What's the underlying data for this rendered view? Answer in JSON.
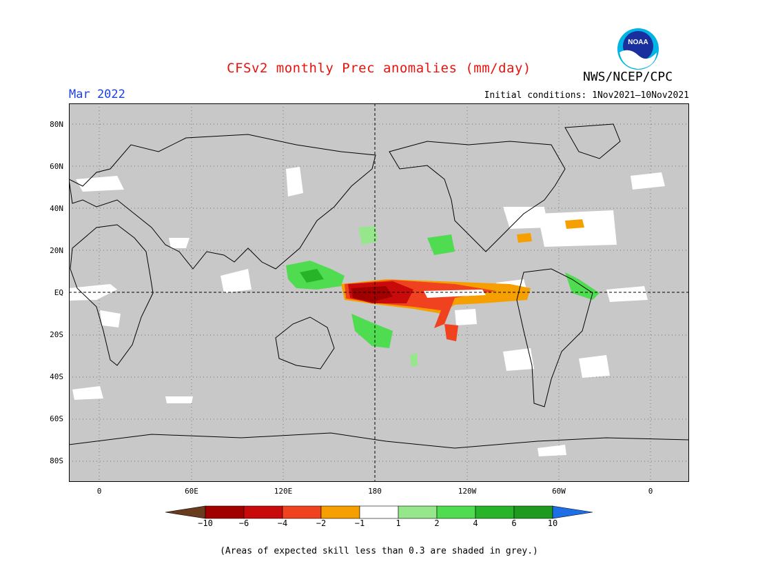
{
  "header": {
    "title": "CFSv2 monthly Prec anomalies (mm/day)",
    "agency": "NWS/NCEP/CPC",
    "logo_text": "NOAA",
    "period": "Mar 2022",
    "initial_conditions": "Initial conditions: 1Nov2021—10Nov2021"
  },
  "map": {
    "projection": "equirectangular",
    "background": "#c8c8c8",
    "latitude_ticks": [
      "80N",
      "60N",
      "40N",
      "20N",
      "EQ",
      "20S",
      "40S",
      "60S",
      "80S"
    ],
    "longitude_ticks": [
      "0",
      "60E",
      "120E",
      "180",
      "120W",
      "60W",
      "0"
    ],
    "dateline_label": "180",
    "equator_label": "EQ"
  },
  "colorbar": {
    "labels": [
      "−10",
      "−6",
      "−4",
      "−2",
      "−1",
      "1",
      "2",
      "4",
      "6",
      "10"
    ],
    "colors": [
      "#6b3b1e",
      "#a00000",
      "#c80a0a",
      "#f0421e",
      "#f5a000",
      "#ffffff",
      "#96e68c",
      "#50dc50",
      "#28b428",
      "#1e9b1e",
      "#1e6ee6"
    ]
  },
  "footnote": "(Areas of expected skill less than 0.3 are shaded in grey.)"
}
